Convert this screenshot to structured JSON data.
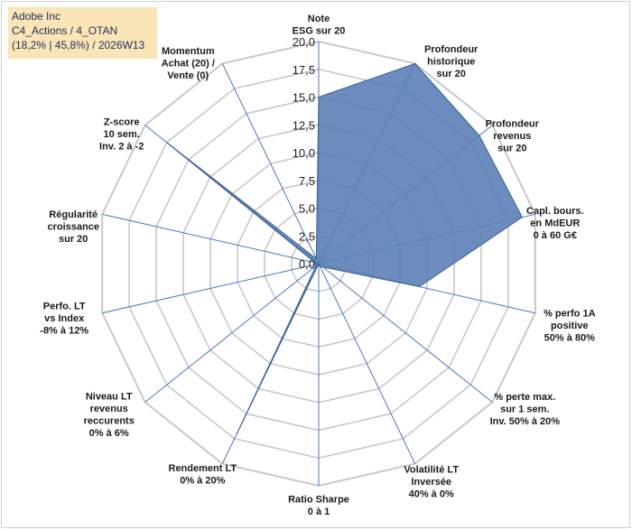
{
  "title": {
    "line1": "Adobe Inc",
    "line2": "C4_Actions / 4_OTAN",
    "line3": "(18,2% | 45,8%) / 2026W13"
  },
  "colors": {
    "fill": "#5b80b5",
    "stroke": "#3c5f96",
    "spoke": "#4a78c0",
    "grid": "#c8c8c8",
    "title_bg": "#fbe5b6"
  },
  "chart_data": {
    "type": "radar",
    "rlim": [
      0,
      20
    ],
    "grid": true,
    "ticks": [
      "0,0",
      "2,5",
      "5,0",
      "7,5",
      "10,0",
      "12,5",
      "15,0",
      "17,5",
      "20,0"
    ],
    "categories": [
      [
        "Note",
        "ESG sur 20"
      ],
      [
        "Profondeur",
        "historique",
        "sur 20"
      ],
      [
        "Profondeur",
        "revenus",
        "sur 20"
      ],
      [
        "Capl. bours.",
        "en MdEUR",
        "0 à 60 G€"
      ],
      [
        "% perfo 1A",
        "positive",
        "50% à 80%"
      ],
      [
        "% perte max.",
        "sur 1 sem.",
        "Inv. 50% à 20%"
      ],
      [
        "Volatilité LT",
        "Inversée",
        "40% à 0%"
      ],
      [
        "Ratio Sharpe",
        "0 à 1"
      ],
      [
        "Rendement LT",
        "0% à 20%"
      ],
      [
        "Niveau LT",
        "revenus",
        "reccurents",
        "0% à 6%"
      ],
      [
        "Perfo. LT",
        "vs Index",
        "-8% à 12%"
      ],
      [
        "Régularité",
        "croissance",
        "sur 20"
      ],
      [
        "Z-score",
        "10 sem.",
        "Inv. 2 à -2"
      ],
      [
        "Momentum",
        "Achat (20) /",
        "Vente (0)"
      ]
    ],
    "series": [
      {
        "values": [
          15.0,
          20.0,
          18.5,
          18.8,
          9.3,
          0.5,
          0.3,
          0.0,
          17.0,
          0.3,
          0.3,
          0.3,
          17.5,
          0.5
        ]
      }
    ]
  }
}
